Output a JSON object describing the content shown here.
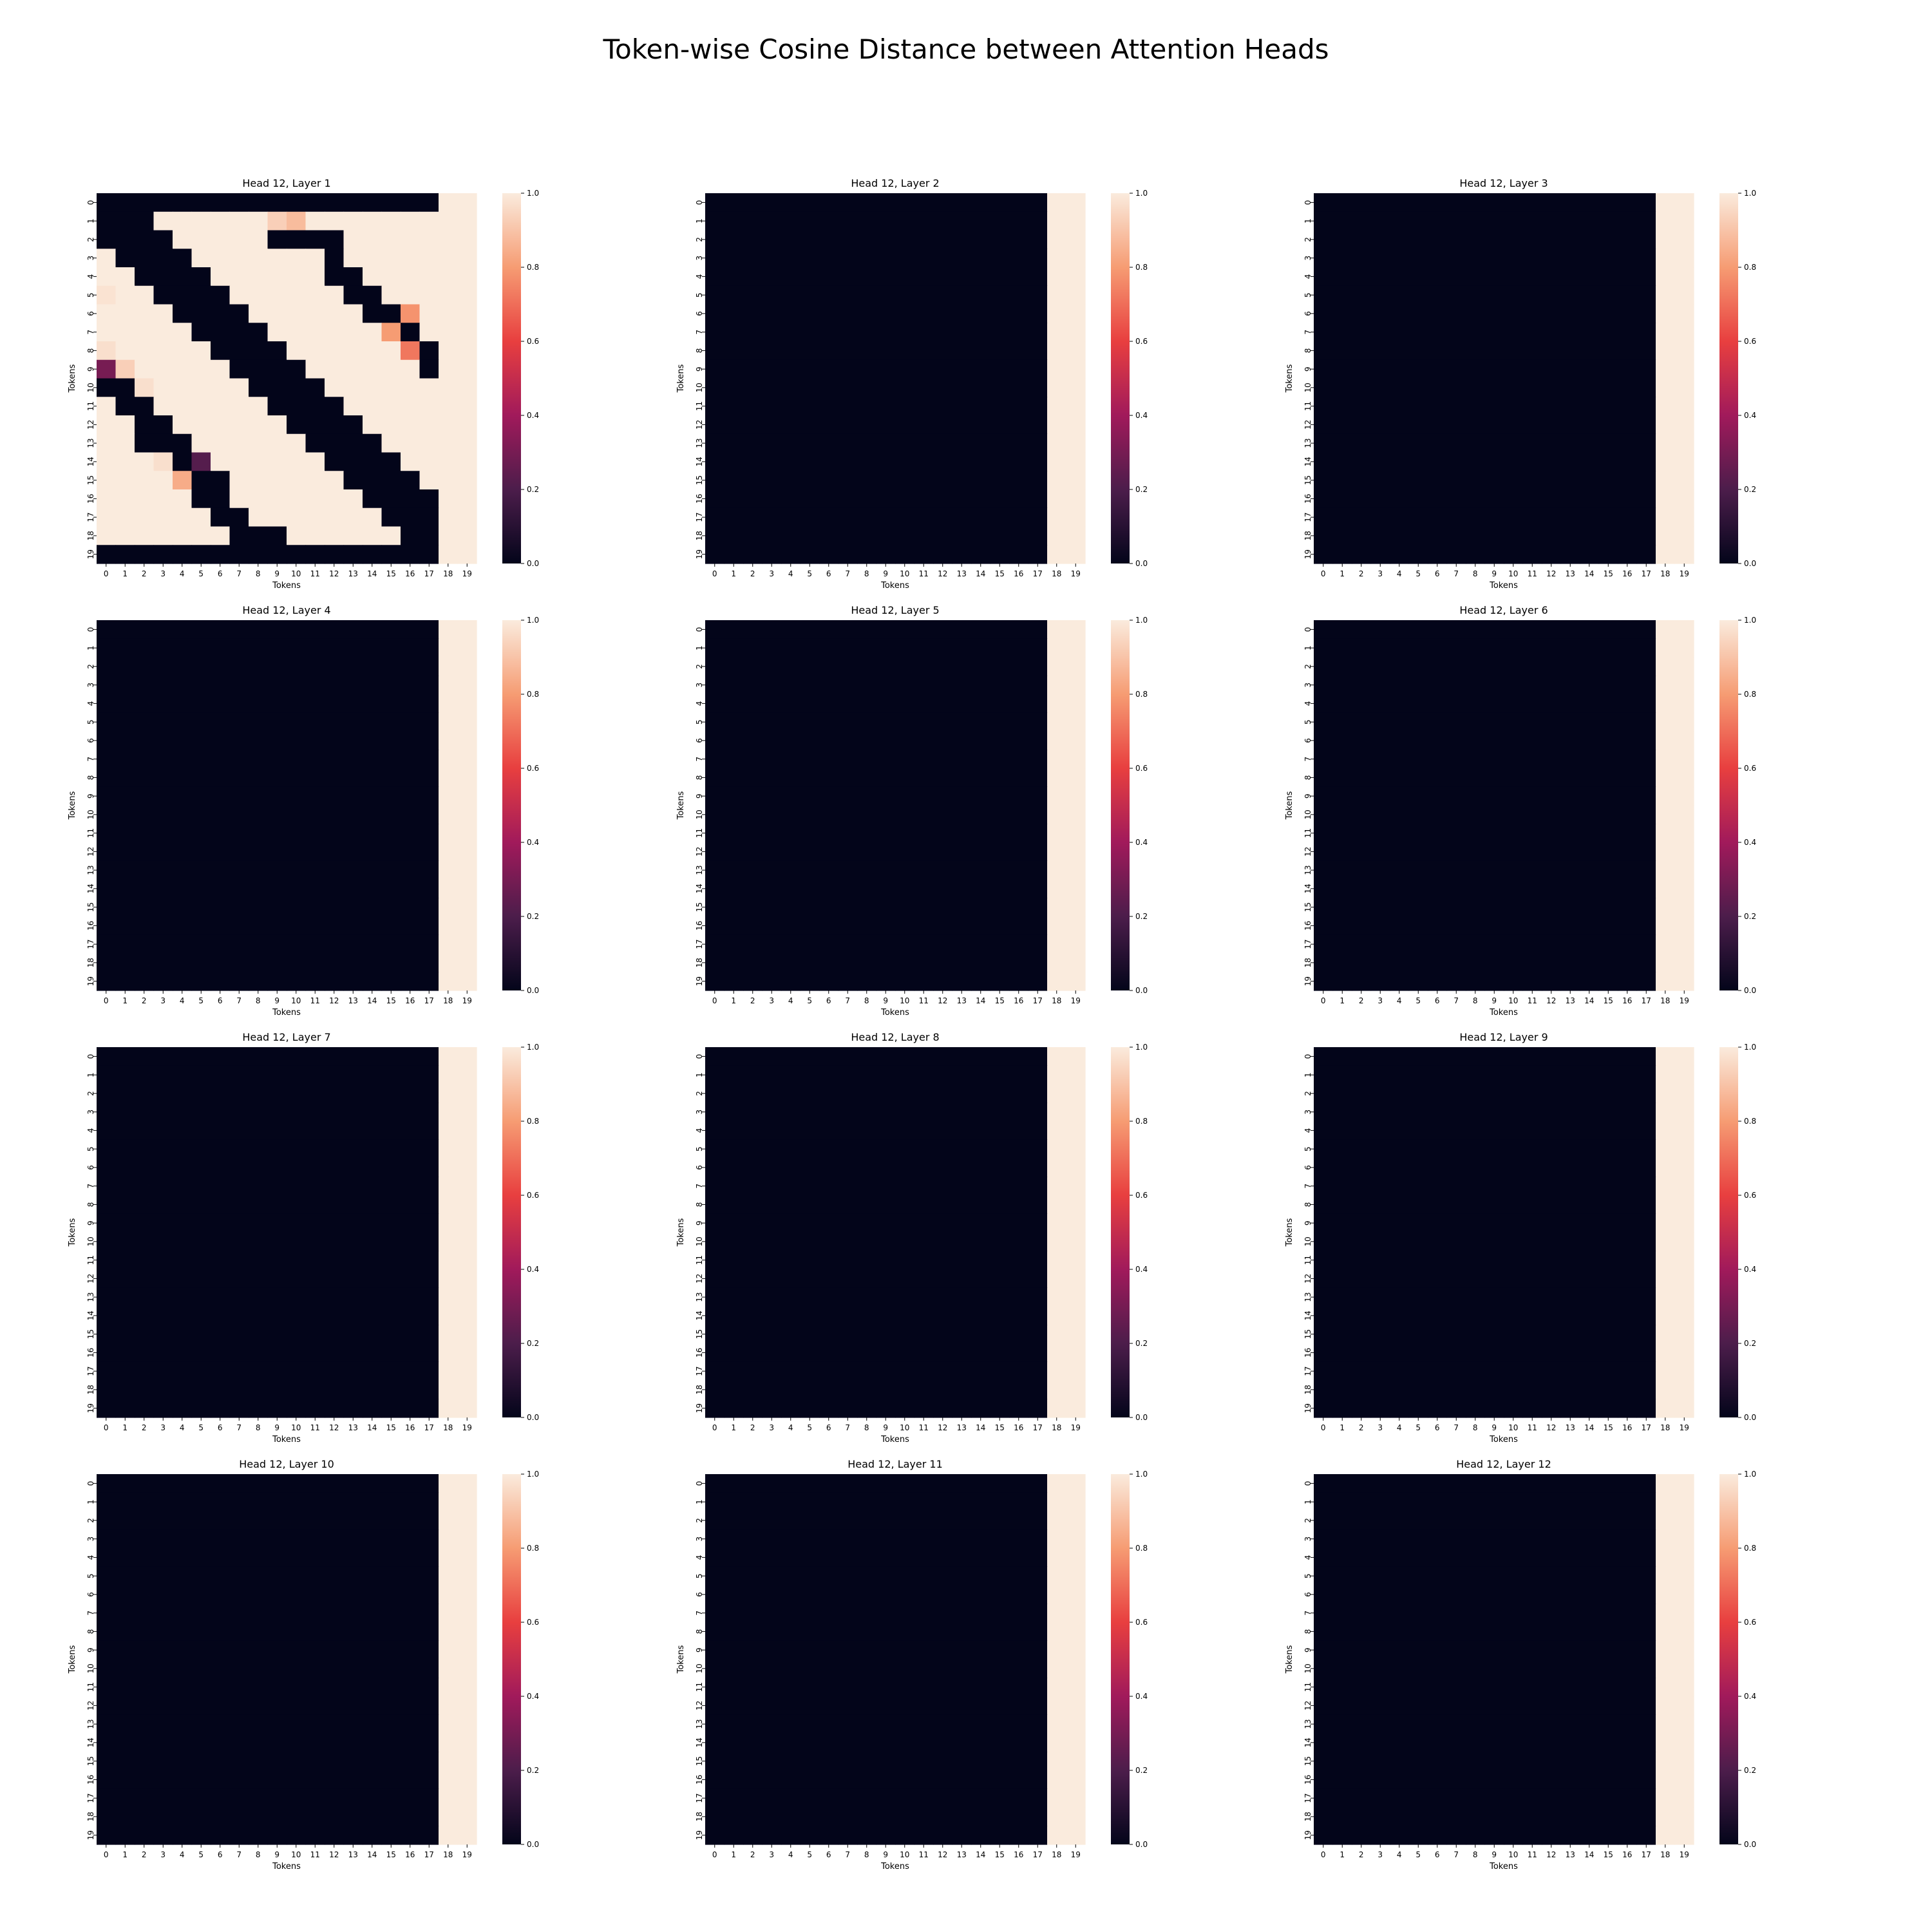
{
  "title": "Token-wise Cosine Distance between Attention Heads",
  "colormap": [
    "#03051a",
    "#4c1d4b",
    "#a11a5b",
    "#e83f3f",
    "#f69c73",
    "#faebdd"
  ],
  "chart_data": {
    "type": "heatmap",
    "tokens": [
      "0",
      "1",
      "2",
      "3",
      "4",
      "5",
      "6",
      "7",
      "8",
      "9",
      "10",
      "11",
      "12",
      "13",
      "14",
      "15",
      "16",
      "17",
      "18",
      "19"
    ],
    "vmin": 0,
    "vmax": 1,
    "colorbar_ticks": [
      "0.0",
      "0.2",
      "0.4",
      "0.6",
      "0.8",
      "1.0"
    ],
    "xlabel": "Tokens",
    "ylabel": "Tokens",
    "panels": [
      {
        "title": "Head 12, Layer 1",
        "pattern": "layer1"
      },
      {
        "title": "Head 12, Layer 2",
        "pattern": "last_two_columns"
      },
      {
        "title": "Head 12, Layer 3",
        "pattern": "last_two_columns"
      },
      {
        "title": "Head 12, Layer 4",
        "pattern": "last_two_columns"
      },
      {
        "title": "Head 12, Layer 5",
        "pattern": "last_two_columns"
      },
      {
        "title": "Head 12, Layer 6",
        "pattern": "last_two_columns"
      },
      {
        "title": "Head 12, Layer 7",
        "pattern": "last_two_columns"
      },
      {
        "title": "Head 12, Layer 8",
        "pattern": "last_two_columns"
      },
      {
        "title": "Head 12, Layer 9",
        "pattern": "last_two_columns"
      },
      {
        "title": "Head 12, Layer 10",
        "pattern": "last_two_columns"
      },
      {
        "title": "Head 12, Layer 11",
        "pattern": "last_two_columns"
      },
      {
        "title": "Head 12, Layer 12",
        "pattern": "last_two_columns"
      }
    ],
    "layer1_matrix": [
      [
        0,
        0,
        0,
        0,
        0,
        0,
        0,
        0,
        0,
        0,
        0,
        0,
        0,
        0,
        0,
        0,
        0,
        0,
        1,
        1
      ],
      [
        0,
        0,
        0,
        1,
        1,
        1,
        1,
        1,
        1,
        0.93,
        0.88,
        1,
        1,
        1,
        1,
        1,
        1,
        1,
        1,
        1
      ],
      [
        0,
        0,
        0,
        0,
        1,
        1,
        1,
        1,
        1,
        0,
        0,
        0,
        0,
        1,
        1,
        1,
        1,
        1,
        1,
        1
      ],
      [
        1,
        0,
        0,
        0,
        0,
        1,
        1,
        1,
        1,
        1,
        1,
        1,
        0,
        1,
        1,
        1,
        1,
        1,
        1,
        1
      ],
      [
        1,
        1,
        0,
        0,
        0,
        0,
        1,
        1,
        1,
        1,
        1,
        1,
        0,
        0,
        1,
        1,
        1,
        1,
        1,
        1
      ],
      [
        0.98,
        1,
        1,
        0,
        0,
        0,
        0,
        1,
        1,
        1,
        1,
        1,
        1,
        0,
        0,
        1,
        1,
        1,
        1,
        1
      ],
      [
        1,
        1,
        1,
        1,
        0,
        0,
        0,
        0,
        1,
        1,
        1,
        1,
        1,
        1,
        0,
        0,
        0.78,
        1,
        1,
        1
      ],
      [
        1,
        1,
        1,
        1,
        1,
        0,
        0,
        0,
        0,
        1,
        1,
        1,
        1,
        1,
        1,
        0.8,
        0,
        1,
        1,
        1
      ],
      [
        0.97,
        1,
        1,
        1,
        1,
        1,
        0,
        0,
        0,
        0,
        1,
        1,
        1,
        1,
        1,
        1,
        0.72,
        0,
        1,
        1
      ],
      [
        0.3,
        0.93,
        1,
        1,
        1,
        1,
        1,
        0,
        0,
        0,
        0,
        1,
        1,
        1,
        1,
        1,
        1,
        0,
        1,
        1
      ],
      [
        0,
        0,
        0.97,
        1,
        1,
        1,
        1,
        1,
        0,
        0,
        0,
        0,
        1,
        1,
        1,
        1,
        1,
        1,
        1,
        1
      ],
      [
        1,
        0,
        0,
        1,
        1,
        1,
        1,
        1,
        1,
        0,
        0,
        0,
        0,
        1,
        1,
        1,
        1,
        1,
        1,
        1
      ],
      [
        1,
        1,
        0,
        0,
        1,
        1,
        1,
        1,
        1,
        1,
        0,
        0,
        0,
        0,
        1,
        1,
        1,
        1,
        1,
        1
      ],
      [
        1,
        1,
        0,
        0,
        0,
        1,
        1,
        1,
        1,
        1,
        1,
        0,
        0,
        0,
        0,
        1,
        1,
        1,
        1,
        1
      ],
      [
        1,
        1,
        1,
        0.97,
        0,
        0.22,
        1,
        1,
        1,
        1,
        1,
        1,
        0,
        0,
        0,
        0,
        1,
        1,
        1,
        1
      ],
      [
        1,
        1,
        1,
        1,
        0.84,
        0,
        0,
        1,
        1,
        1,
        1,
        1,
        1,
        0,
        0,
        0,
        0,
        1,
        1,
        1
      ],
      [
        1,
        1,
        1,
        1,
        1,
        0,
        0,
        1,
        1,
        1,
        1,
        1,
        1,
        1,
        0,
        0,
        0,
        0,
        1,
        1
      ],
      [
        1,
        1,
        1,
        1,
        1,
        1,
        0,
        0,
        1,
        1,
        1,
        1,
        1,
        1,
        1,
        0,
        0,
        0,
        1,
        1
      ],
      [
        1,
        1,
        1,
        1,
        1,
        1,
        1,
        0,
        0,
        0,
        1,
        1,
        1,
        1,
        1,
        1,
        0,
        0,
        1,
        1
      ],
      [
        0,
        0,
        0,
        0,
        0,
        0,
        0,
        0,
        0,
        0,
        0,
        0,
        0,
        0,
        0,
        0,
        0,
        0,
        1,
        1
      ]
    ]
  }
}
